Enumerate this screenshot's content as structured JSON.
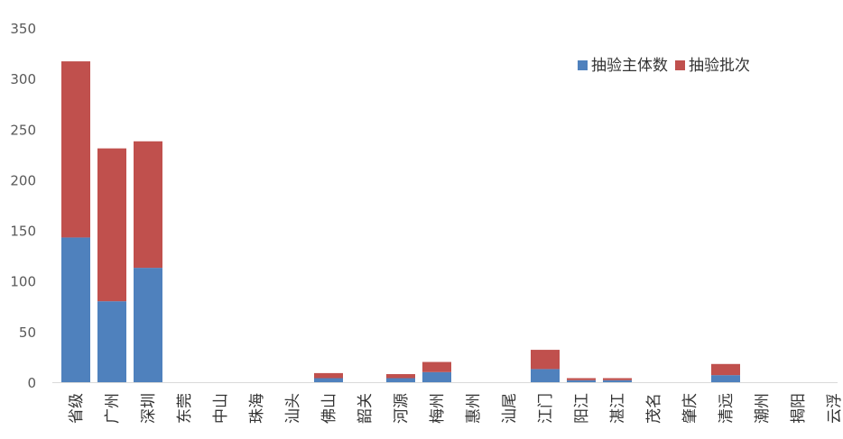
{
  "chart_data": {
    "type": "bar",
    "stacked": true,
    "title": "",
    "xlabel": "",
    "ylabel": "",
    "ylim": [
      0,
      350
    ],
    "yticks": [
      0,
      50,
      100,
      150,
      200,
      250,
      300,
      350
    ],
    "grid": false,
    "legend_position": "top-right",
    "categories": [
      "省级",
      "广州",
      "深圳",
      "东莞",
      "中山",
      "珠海",
      "汕头",
      "佛山",
      "韶关",
      "河源",
      "梅州",
      "惠州",
      "汕尾",
      "江门",
      "阳江",
      "湛江",
      "茂名",
      "肇庆",
      "清远",
      "潮州",
      "揭阳",
      "云浮"
    ],
    "series": [
      {
        "name": "抽验主体数",
        "color": "#4f81bd",
        "values": [
          143,
          80,
          113,
          0,
          0,
          0,
          0,
          4,
          0,
          4,
          10,
          0,
          0,
          13,
          2,
          2,
          0,
          0,
          7,
          0,
          0,
          0
        ]
      },
      {
        "name": "抽验批次",
        "color": "#c0504d",
        "values": [
          174,
          151,
          125,
          0,
          0,
          0,
          0,
          5,
          0,
          4,
          10,
          0,
          0,
          19,
          2,
          2,
          0,
          0,
          11,
          0,
          0,
          0
        ]
      }
    ]
  }
}
